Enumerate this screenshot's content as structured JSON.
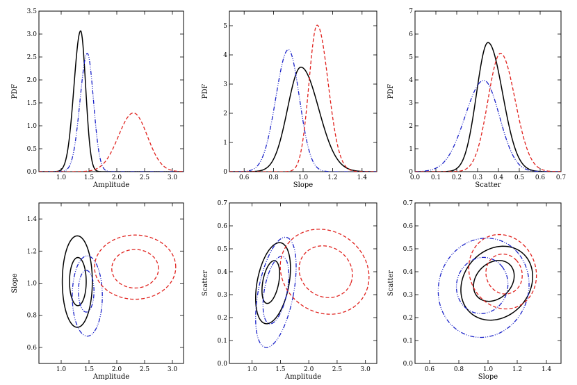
{
  "colors": {
    "black": "#000000",
    "red": "#e0201c",
    "blue": "#1a22c8"
  },
  "chart_data": [
    {
      "type": "line",
      "xlabel": "Amplitude",
      "ylabel": "PDF",
      "xlim": [
        0.6,
        3.2
      ],
      "ylim": [
        0,
        3.5
      ],
      "xticks": [
        "1.0",
        "1.5",
        "2.0",
        "2.5",
        "3.0"
      ],
      "xtick_values": [
        1.0,
        1.5,
        2.0,
        2.5,
        3.0
      ],
      "yticks": [
        "0.0",
        "0.5",
        "1.0",
        "1.5",
        "2.0",
        "2.5",
        "3.0",
        "3.5"
      ],
      "ytick_values": [
        0,
        0.5,
        1.0,
        1.5,
        2.0,
        2.5,
        3.0,
        3.5
      ],
      "series": [
        {
          "style": "solid",
          "color": "#000000",
          "peak_x": 1.35,
          "peak_y": 3.07,
          "sigma_left": 0.12,
          "sigma_right": 0.09
        },
        {
          "style": "dashdotdot",
          "color": "#1a22c8",
          "peak_x": 1.47,
          "peak_y": 2.58,
          "sigma_left": 0.13,
          "sigma_right": 0.11
        },
        {
          "style": "dashed",
          "color": "#e0201c",
          "peak_x": 2.3,
          "peak_y": 1.28,
          "sigma_left": 0.27,
          "sigma_right": 0.25
        }
      ]
    },
    {
      "type": "line",
      "xlabel": "Slope",
      "ylabel": "PDF",
      "xlim": [
        0.5,
        1.5
      ],
      "ylim": [
        0,
        5.5
      ],
      "xticks": [
        "0.6",
        "0.8",
        "1.0",
        "1.2",
        "1.4"
      ],
      "xtick_values": [
        0.6,
        0.8,
        1.0,
        1.2,
        1.4
      ],
      "yticks": [
        "0",
        "1",
        "2",
        "3",
        "4",
        "5"
      ],
      "ytick_values": [
        0,
        1,
        2,
        3,
        4,
        5
      ],
      "series": [
        {
          "style": "solid",
          "color": "#000000",
          "peak_x": 0.985,
          "peak_y": 3.58,
          "sigma_left": 0.09,
          "sigma_right": 0.12
        },
        {
          "style": "dashdotdot",
          "color": "#1a22c8",
          "peak_x": 0.9,
          "peak_y": 4.18,
          "sigma_left": 0.085,
          "sigma_right": 0.075
        },
        {
          "style": "dashed",
          "color": "#e0201c",
          "peak_x": 1.095,
          "peak_y": 5.02,
          "sigma_left": 0.055,
          "sigma_right": 0.075
        }
      ]
    },
    {
      "type": "line",
      "xlabel": "Scatter",
      "ylabel": "PDF",
      "xlim": [
        0.0,
        0.7
      ],
      "ylim": [
        0,
        7
      ],
      "xticks": [
        "0.0",
        "0.1",
        "0.2",
        "0.3",
        "0.4",
        "0.5",
        "0.6",
        "0.7"
      ],
      "xtick_values": [
        0.0,
        0.1,
        0.2,
        0.3,
        0.4,
        0.5,
        0.6,
        0.7
      ],
      "yticks": [
        "0",
        "1",
        "2",
        "3",
        "4",
        "5",
        "6",
        "7"
      ],
      "ytick_values": [
        0,
        1,
        2,
        3,
        4,
        5,
        6,
        7
      ],
      "series": [
        {
          "style": "solid",
          "color": "#000000",
          "peak_x": 0.35,
          "peak_y": 5.63,
          "sigma_left": 0.055,
          "sigma_right": 0.07
        },
        {
          "style": "dashdotdot",
          "color": "#1a22c8",
          "peak_x": 0.33,
          "peak_y": 3.98,
          "sigma_left": 0.09,
          "sigma_right": 0.075
        },
        {
          "style": "dashed",
          "color": "#e0201c",
          "peak_x": 0.41,
          "peak_y": 5.16,
          "sigma_left": 0.06,
          "sigma_right": 0.07
        }
      ]
    },
    {
      "type": "contour",
      "xlabel": "Amplitude",
      "ylabel": "Slope",
      "xlim": [
        0.6,
        3.2
      ],
      "ylim": [
        0.5,
        1.5
      ],
      "xticks": [
        "1.0",
        "1.5",
        "2.0",
        "2.5",
        "3.0"
      ],
      "xtick_values": [
        1.0,
        1.5,
        2.0,
        2.5,
        3.0
      ],
      "yticks": [
        "0.6",
        "0.8",
        "1.0",
        "1.2",
        "1.4"
      ],
      "ytick_values": [
        0.6,
        0.8,
        1.0,
        1.2,
        1.4
      ],
      "contours": [
        {
          "style": "solid",
          "color": "#000000",
          "cx": 1.29,
          "cy": 1.01,
          "rx": 0.27,
          "ry": 0.285,
          "angle": 0
        },
        {
          "style": "solid",
          "color": "#000000",
          "cx": 1.3,
          "cy": 1.01,
          "rx": 0.15,
          "ry": 0.15,
          "angle": 0
        },
        {
          "style": "dashdotdot",
          "color": "#1a22c8",
          "cx": 1.47,
          "cy": 0.92,
          "rx": 0.27,
          "ry": 0.25,
          "angle": 0
        },
        {
          "style": "dashdotdot",
          "color": "#1a22c8",
          "cx": 1.45,
          "cy": 0.95,
          "rx": 0.14,
          "ry": 0.13,
          "angle": 0
        },
        {
          "style": "dashed",
          "color": "#e0201c",
          "cx": 2.33,
          "cy": 1.1,
          "rx": 0.73,
          "ry": 0.2,
          "angle": 0
        },
        {
          "style": "dashed",
          "color": "#e0201c",
          "cx": 2.33,
          "cy": 1.09,
          "rx": 0.42,
          "ry": 0.12,
          "angle": 0
        }
      ]
    },
    {
      "type": "contour",
      "xlabel": "Amplitude",
      "ylabel": "Scatter",
      "xlim": [
        0.6,
        3.2
      ],
      "ylim": [
        0.0,
        0.7
      ],
      "xticks": [
        "1.0",
        "1.5",
        "2.0",
        "2.5",
        "3.0"
      ],
      "xtick_values": [
        1.0,
        1.5,
        2.0,
        2.5,
        3.0
      ],
      "yticks": [
        "0.0",
        "0.1",
        "0.2",
        "0.3",
        "0.4",
        "0.5",
        "0.6",
        "0.7"
      ],
      "ytick_values": [
        0.0,
        0.1,
        0.2,
        0.3,
        0.4,
        0.5,
        0.6,
        0.7
      ],
      "contours": [
        {
          "style": "solid",
          "color": "#000000",
          "cx": 1.37,
          "cy": 0.35,
          "rx": 0.28,
          "ry": 0.18,
          "angle": -12
        },
        {
          "style": "solid",
          "color": "#000000",
          "cx": 1.33,
          "cy": 0.355,
          "rx": 0.14,
          "ry": 0.095,
          "angle": -12
        },
        {
          "style": "dashdotdot",
          "color": "#1a22c8",
          "cx": 1.42,
          "cy": 0.31,
          "rx": 0.31,
          "ry": 0.245,
          "angle": -12
        },
        {
          "style": "dashdotdot",
          "color": "#1a22c8",
          "cx": 1.42,
          "cy": 0.32,
          "rx": 0.2,
          "ry": 0.15,
          "angle": -12
        },
        {
          "style": "dashed",
          "color": "#e0201c",
          "cx": 2.28,
          "cy": 0.4,
          "rx": 0.8,
          "ry": 0.18,
          "angle": -22
        },
        {
          "style": "dashed",
          "color": "#e0201c",
          "cx": 2.3,
          "cy": 0.4,
          "rx": 0.48,
          "ry": 0.11,
          "angle": -22
        }
      ]
    },
    {
      "type": "contour",
      "xlabel": "Slope",
      "ylabel": "Scatter",
      "xlim": [
        0.5,
        1.5
      ],
      "ylim": [
        0.0,
        0.7
      ],
      "xticks": [
        "0.6",
        "0.8",
        "1.0",
        "1.2",
        "1.4"
      ],
      "xtick_values": [
        0.6,
        0.8,
        1.0,
        1.2,
        1.4
      ],
      "yticks": [
        "0.0",
        "0.1",
        "0.2",
        "0.3",
        "0.4",
        "0.5",
        "0.6",
        "0.7"
      ],
      "ytick_values": [
        0.0,
        0.1,
        0.2,
        0.3,
        0.4,
        0.5,
        0.6,
        0.7
      ],
      "contours": [
        {
          "style": "solid",
          "color": "#000000",
          "cx": 1.06,
          "cy": 0.35,
          "rx": 0.26,
          "ry": 0.15,
          "angle": 35
        },
        {
          "style": "solid",
          "color": "#000000",
          "cx": 1.04,
          "cy": 0.36,
          "rx": 0.15,
          "ry": 0.08,
          "angle": 35
        },
        {
          "style": "dashdotdot",
          "color": "#1a22c8",
          "cx": 0.97,
          "cy": 0.33,
          "rx": 0.32,
          "ry": 0.21,
          "angle": 42
        },
        {
          "style": "dashdotdot",
          "color": "#1a22c8",
          "cx": 0.96,
          "cy": 0.34,
          "rx": 0.18,
          "ry": 0.12,
          "angle": 40
        },
        {
          "style": "dashed",
          "color": "#e0201c",
          "cx": 1.1,
          "cy": 0.4,
          "rx": 0.22,
          "ry": 0.17,
          "angle": 45
        },
        {
          "style": "dashed",
          "color": "#e0201c",
          "cx": 1.11,
          "cy": 0.39,
          "rx": 0.12,
          "ry": 0.09,
          "angle": 45
        }
      ]
    }
  ]
}
